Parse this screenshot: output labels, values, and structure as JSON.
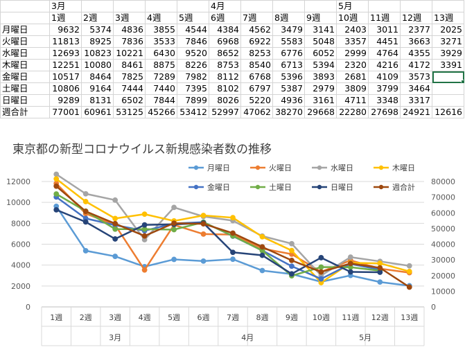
{
  "sheet": {
    "months": [
      {
        "label": "3月",
        "col": 1
      },
      {
        "label": "4月",
        "col": 6
      },
      {
        "label": "5月",
        "col": 10
      }
    ],
    "weeks": [
      "1週",
      "2週",
      "3週",
      "4週",
      "5週",
      "6週",
      "7週",
      "8週",
      "9週",
      "10週",
      "11週",
      "12週",
      "13週"
    ],
    "rows": [
      {
        "label": "月曜日",
        "values": [
          9632,
          5374,
          4836,
          3855,
          4544,
          4384,
          4562,
          3479,
          3141,
          2403,
          3011,
          2377,
          2025
        ]
      },
      {
        "label": "火曜日",
        "values": [
          11813,
          8925,
          7836,
          3533,
          7846,
          6968,
          6922,
          5583,
          5048,
          3357,
          4451,
          3663,
          3271
        ]
      },
      {
        "label": "水曜日",
        "values": [
          12693,
          10823,
          10221,
          6430,
          9520,
          8652,
          8253,
          6776,
          6052,
          2999,
          4764,
          4355,
          3929
        ]
      },
      {
        "label": "木曜日",
        "values": [
          12251,
          10080,
          8461,
          8875,
          8226,
          8753,
          8540,
          6713,
          5394,
          2320,
          4216,
          4172,
          3391
        ]
      },
      {
        "label": "金曜日",
        "values": [
          10517,
          8464,
          7825,
          7289,
          7982,
          8112,
          6768,
          5396,
          3893,
          2681,
          4109,
          3573,
          null
        ]
      },
      {
        "label": "土曜日",
        "values": [
          10806,
          9164,
          7444,
          7440,
          7395,
          8102,
          6797,
          5387,
          2979,
          3809,
          3799,
          3464,
          null
        ]
      },
      {
        "label": "日曜日",
        "values": [
          9289,
          8131,
          6502,
          7844,
          7899,
          8026,
          5220,
          4936,
          3161,
          4711,
          3348,
          3317,
          null
        ]
      },
      {
        "label": "週合計",
        "values": [
          77001,
          60961,
          53125,
          45266,
          53412,
          52997,
          47062,
          38270,
          29668,
          22280,
          27698,
          24921,
          12616
        ]
      }
    ]
  },
  "chart_data": {
    "type": "line",
    "title": "東京都の新型コロナウイルス新規感染者数の推移",
    "categories": [
      "1週",
      "2週",
      "3週",
      "4週",
      "5週",
      "6週",
      "7週",
      "8週",
      "9週",
      "10週",
      "11週",
      "12週",
      "13週"
    ],
    "category_groups": [
      {
        "label": "3月",
        "span": 5
      },
      {
        "label": "4月",
        "span": 4
      },
      {
        "label": "5月",
        "span": 4
      }
    ],
    "y_left": {
      "min": 0,
      "max": 12000,
      "step": 2000,
      "ticks": [
        "0",
        "2000",
        "4000",
        "6000",
        "8000",
        "10000",
        "12000"
      ]
    },
    "y_right": {
      "min": 0,
      "max": 80000,
      "step": 10000,
      "ticks": [
        "0",
        "10000",
        "20000",
        "30000",
        "40000",
        "50000",
        "60000",
        "70000",
        "80000"
      ]
    },
    "grid": true,
    "legend_position": "top-right",
    "series": [
      {
        "name": "月曜日",
        "color": "#5B9BD5",
        "axis": "left",
        "values": [
          9632,
          5374,
          4836,
          3855,
          4544,
          4384,
          4562,
          3479,
          3141,
          2403,
          3011,
          2377,
          2025
        ]
      },
      {
        "name": "火曜日",
        "color": "#ED7D31",
        "axis": "left",
        "values": [
          11813,
          8925,
          7836,
          3533,
          7846,
          6968,
          6922,
          5583,
          5048,
          3357,
          4451,
          3663,
          3271
        ]
      },
      {
        "name": "水曜日",
        "color": "#A5A5A5",
        "axis": "left",
        "values": [
          12693,
          10823,
          10221,
          6430,
          9520,
          8652,
          8253,
          6776,
          6052,
          2999,
          4764,
          4355,
          3929
        ]
      },
      {
        "name": "木曜日",
        "color": "#FFC000",
        "axis": "left",
        "values": [
          12251,
          10080,
          8461,
          8875,
          8226,
          8753,
          8540,
          6713,
          5394,
          2320,
          4216,
          4172,
          3391
        ]
      },
      {
        "name": "金曜日",
        "color": "#4472C4",
        "axis": "left",
        "values": [
          10517,
          8464,
          7825,
          7289,
          7982,
          8112,
          6768,
          5396,
          3893,
          2681,
          4109,
          3573,
          null
        ]
      },
      {
        "name": "土曜日",
        "color": "#70AD47",
        "axis": "left",
        "values": [
          10806,
          9164,
          7444,
          7440,
          7395,
          8102,
          6797,
          5387,
          2979,
          3809,
          3799,
          3464,
          null
        ]
      },
      {
        "name": "日曜日",
        "color": "#264478",
        "axis": "left",
        "values": [
          9289,
          8131,
          6502,
          7844,
          7899,
          8026,
          5220,
          4936,
          3161,
          4711,
          3348,
          3317,
          null
        ]
      },
      {
        "name": "週合計",
        "color": "#9E480E",
        "axis": "right",
        "values": [
          77001,
          60961,
          53125,
          45266,
          53412,
          52997,
          47062,
          38270,
          29668,
          22280,
          27698,
          24921,
          12616
        ]
      }
    ]
  }
}
